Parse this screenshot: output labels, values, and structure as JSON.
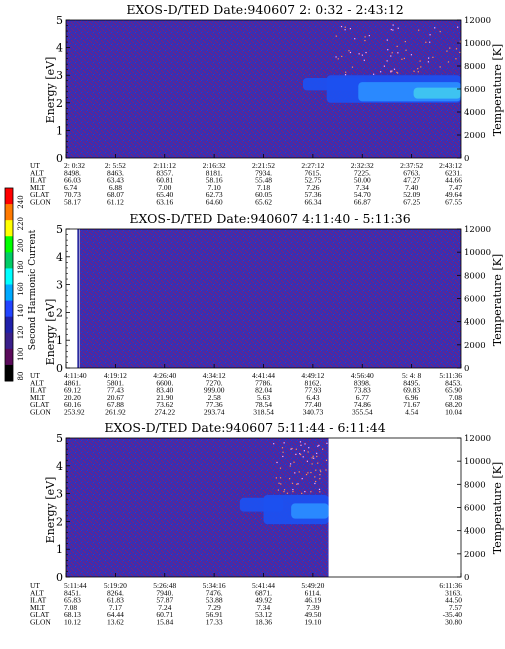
{
  "colorbar": {
    "label": "Second Harmonic Current",
    "ticks": [
      "240",
      "220",
      "200",
      "180",
      "160",
      "140",
      "120",
      "100",
      "80"
    ],
    "colors": [
      "#ff0000",
      "#ff7a00",
      "#ffff00",
      "#00ff00",
      "#00cc66",
      "#00ffff",
      "#00aaff",
      "#2244ff",
      "#2020aa",
      "#3a1f8a",
      "#5a0a5a",
      "#000000"
    ]
  },
  "chart_data": [
    {
      "type": "heatmap",
      "title": "EXOS-D/TED   Date:940607  2: 0:32 - 2:43:12",
      "ylabel": "Energy [eV]",
      "y2label": "Temperature [K]",
      "ylim": [
        0,
        5
      ],
      "y2lim": [
        0,
        12000
      ],
      "yticks": [
        "0",
        "1",
        "2",
        "3",
        "4",
        "5"
      ],
      "y2ticks": [
        "0",
        "2000",
        "4000",
        "6000",
        "8000",
        "10000",
        "12000"
      ],
      "data_end_fraction": 1.0,
      "features": [
        {
          "x0": 0.6,
          "x1": 0.76,
          "e_lo": 2.45,
          "e_hi": 2.9,
          "level": "blue"
        },
        {
          "x0": 0.66,
          "x1": 1.0,
          "e_lo": 2.0,
          "e_hi": 3.0,
          "level": "blue"
        },
        {
          "x0": 0.74,
          "x1": 1.0,
          "e_lo": 2.05,
          "e_hi": 2.75,
          "level": "lightblue"
        },
        {
          "x0": 0.88,
          "x1": 1.0,
          "e_lo": 2.15,
          "e_hi": 2.55,
          "level": "cyan"
        }
      ],
      "table": {
        "labels": [
          "UT",
          "ALT",
          "ILAT",
          "MLT",
          "GLAT",
          "GLON"
        ],
        "columns": [
          [
            "2: 0:32",
            "8498.",
            "66.03",
            "6.74",
            "70.73",
            "58.17"
          ],
          [
            "2: 5:52",
            "8463.",
            "63.43",
            "6.88",
            "68.07",
            "61.12"
          ],
          [
            "2:11:12",
            "8357.",
            "60.81",
            "7.00",
            "65.40",
            "63.16"
          ],
          [
            "2:16:32",
            "8181.",
            "58.16",
            "7.10",
            "62.73",
            "64.60"
          ],
          [
            "2:21:52",
            "7934.",
            "55.48",
            "7.18",
            "60.05",
            "65.62"
          ],
          [
            "2:27:12",
            "7615.",
            "52.75",
            "7.26",
            "57.36",
            "66.34"
          ],
          [
            "2:32:32",
            "7225.",
            "50.00",
            "7.34",
            "54.70",
            "66.87"
          ],
          [
            "2:37:52",
            "6763.",
            "47.27",
            "7.40",
            "52.09",
            "67.25"
          ],
          [
            "2:43:12",
            "6231.",
            "44.66",
            "7.47",
            "49.64",
            "67.55"
          ]
        ]
      }
    },
    {
      "type": "heatmap",
      "title": "EXOS-D/TED   Date:940607  4:11:40 - 5:11:36",
      "ylabel": "Energy [eV]",
      "y2label": "Temperature [K]",
      "ylim": [
        0,
        5
      ],
      "y2lim": [
        0,
        12000
      ],
      "yticks": [
        "0",
        "1",
        "2",
        "3",
        "4",
        "5"
      ],
      "y2ticks": [
        "0",
        "2000",
        "4000",
        "6000",
        "8000",
        "10000",
        "12000"
      ],
      "data_start_fraction": 0.035,
      "data_end_fraction": 1.0,
      "features": [],
      "table": {
        "labels": [
          "UT",
          "ALT",
          "ILAT",
          "MLT",
          "GLAT",
          "GLON"
        ],
        "columns": [
          [
            "4:11:40",
            "4861.",
            "69.12",
            "20.20",
            "60.16",
            "253.92"
          ],
          [
            "4:19:12",
            "5801.",
            "77.43",
            "20.67",
            "67.88",
            "261.92"
          ],
          [
            "4:26:40",
            "6600.",
            "83.40",
            "21.90",
            "73.62",
            "274.22"
          ],
          [
            "4:34:12",
            "7270.",
            "999.00",
            "2.58",
            "77.36",
            "293.74"
          ],
          [
            "4:41:44",
            "7786.",
            "82.04",
            "5.63",
            "78.54",
            "318.54"
          ],
          [
            "4:49:12",
            "8162.",
            "77.93",
            "6.43",
            "77.40",
            "340.73"
          ],
          [
            "4:56:40",
            "8398.",
            "73.83",
            "6.77",
            "74.86",
            "355.54"
          ],
          [
            "5: 4: 8",
            "8495.",
            "69.83",
            "6.96",
            "71.67",
            "4.54"
          ],
          [
            "5:11:36",
            "8453.",
            "65.90",
            "7.08",
            "68.20",
            "10.04"
          ]
        ]
      }
    },
    {
      "type": "heatmap",
      "title": "EXOS-D/TED   Date:940607  5:11:44 - 6:11:44",
      "ylabel": "Energy [eV]",
      "y2label": "Temperature [K]",
      "ylim": [
        0,
        5
      ],
      "y2lim": [
        0,
        12000
      ],
      "yticks": [
        "0",
        "1",
        "2",
        "3",
        "4",
        "5"
      ],
      "y2ticks": [
        "0",
        "2000",
        "4000",
        "6000",
        "8000",
        "10000",
        "12000"
      ],
      "data_end_fraction": 0.665,
      "features": [
        {
          "x0": 0.44,
          "x1": 0.55,
          "e_lo": 2.35,
          "e_hi": 2.85,
          "level": "blue"
        },
        {
          "x0": 0.5,
          "x1": 0.665,
          "e_lo": 1.9,
          "e_hi": 2.95,
          "level": "blue"
        },
        {
          "x0": 0.57,
          "x1": 0.665,
          "e_lo": 2.1,
          "e_hi": 2.65,
          "level": "lightblue"
        }
      ],
      "table": {
        "labels": [
          "UT",
          "ALT",
          "ILAT",
          "MLT",
          "GLAT",
          "GLON"
        ],
        "columns": [
          [
            "5:11:44",
            "8451.",
            "65.83",
            "7.08",
            "68.13",
            "10.12"
          ],
          [
            "5:19:20",
            "8264.",
            "61.83",
            "7.17",
            "64.44",
            "13.62"
          ],
          [
            "5:26:48",
            "7940.",
            "57.87",
            "7.24",
            "60.71",
            "15.84"
          ],
          [
            "5:34:16",
            "7476.",
            "53.88",
            "7.29",
            "56.91",
            "17.33"
          ],
          [
            "5:41:44",
            "6871.",
            "49.92",
            "7.34",
            "53.12",
            "18.36"
          ],
          [
            "5:49:20",
            "6114.",
            "46.19",
            "7.39",
            "49.50",
            "19.10"
          ],
          [
            "6:11:36",
            "3163.",
            "44.50",
            "7.57",
            "-35.40",
            "30.80"
          ]
        ],
        "column_fractions": [
          0,
          0.125,
          0.25,
          0.375,
          0.5,
          0.625,
          1.0
        ]
      }
    }
  ]
}
